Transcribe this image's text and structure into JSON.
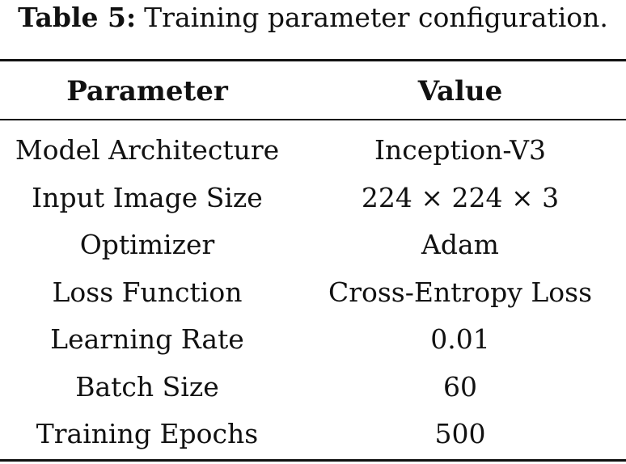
{
  "caption": {
    "label": "Table 5:",
    "text": "Training parameter configuration."
  },
  "table": {
    "headers": [
      "Parameter",
      "Value"
    ],
    "rows": [
      [
        "Model Architecture",
        "Inception-V3"
      ],
      [
        "Input Image Size",
        "224 × 224 × 3"
      ],
      [
        "Optimizer",
        "Adam"
      ],
      [
        "Loss Function",
        "Cross-Entropy Loss"
      ],
      [
        "Learning Rate",
        "0.01"
      ],
      [
        "Batch Size",
        "60"
      ],
      [
        "Training Epochs",
        "500"
      ]
    ]
  }
}
